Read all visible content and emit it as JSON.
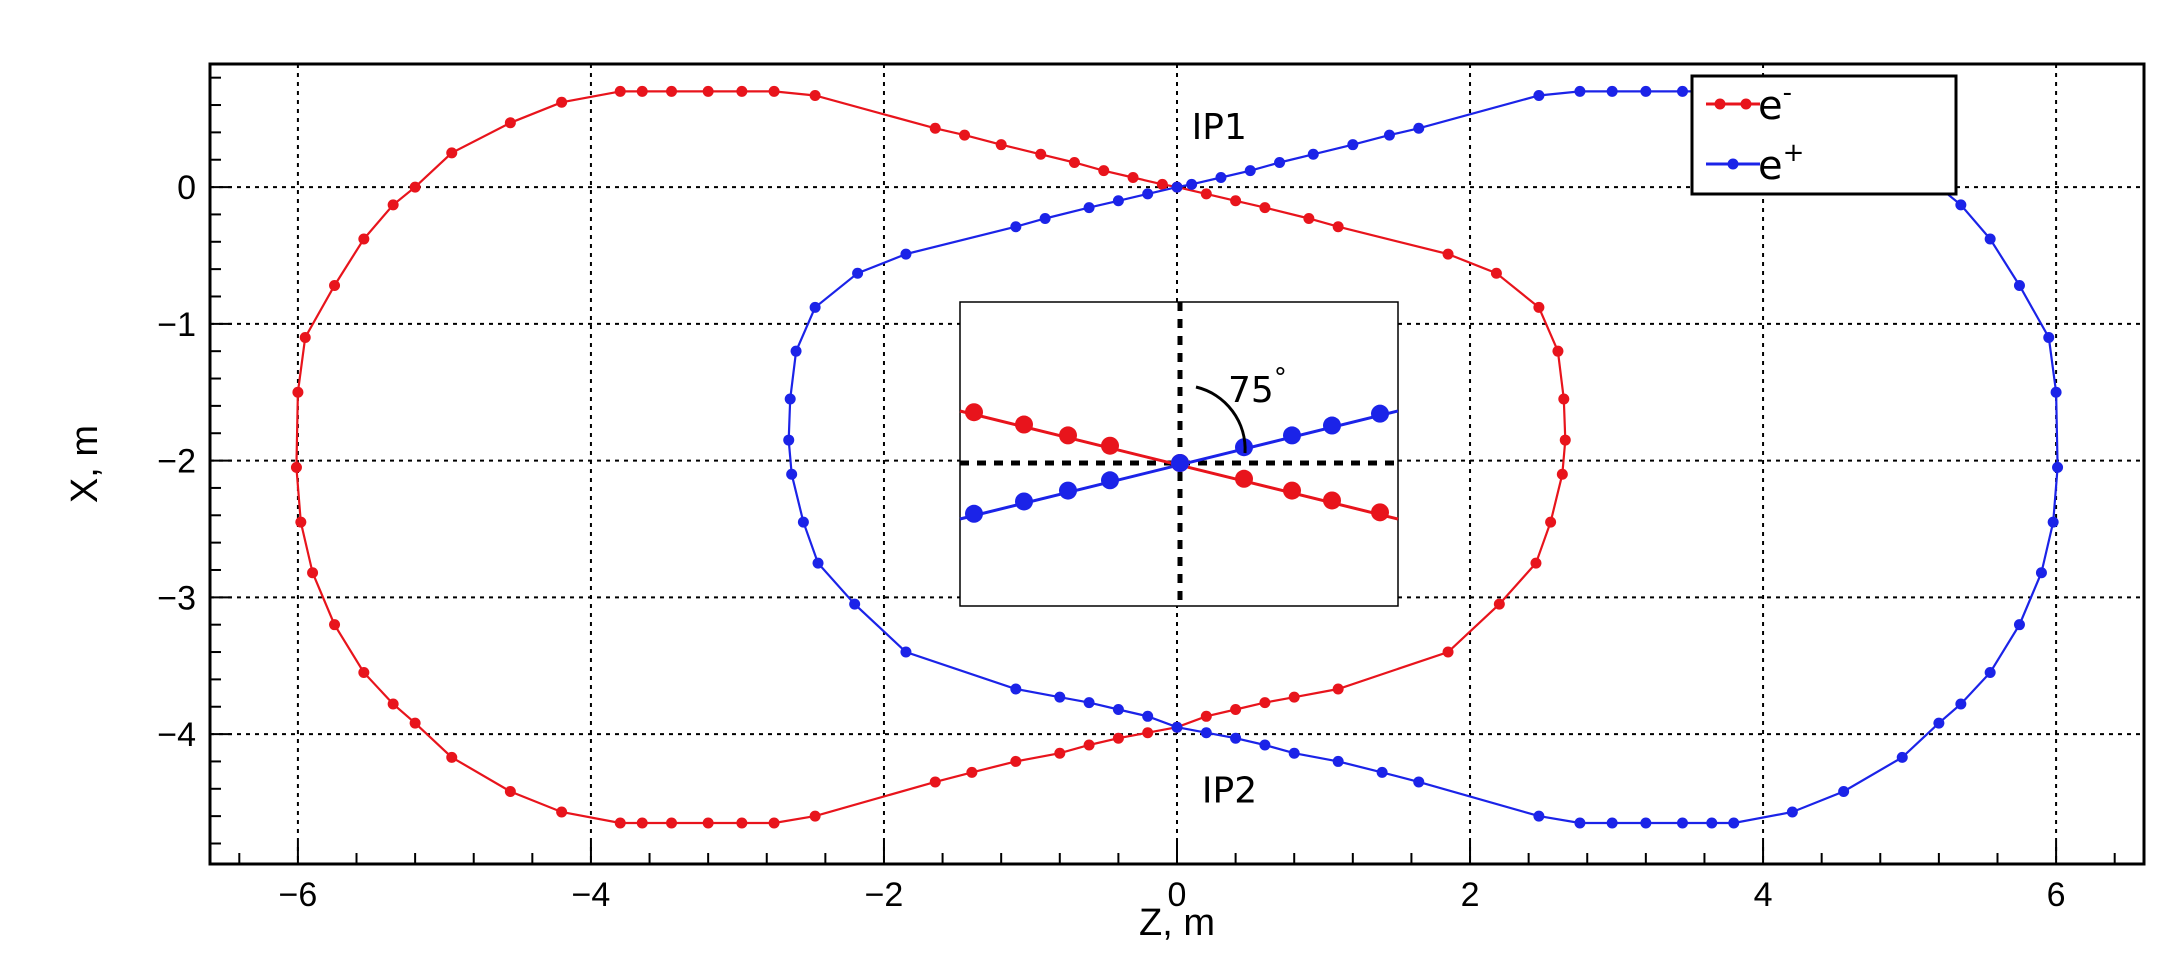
{
  "chart_data": {
    "type": "scatter",
    "xlabel": "Z, m",
    "ylabel": "X, m",
    "xlim": [
      -6.6,
      6.6
    ],
    "ylim": [
      -4.95,
      0.9
    ],
    "x_ticks": [
      -6,
      -4,
      -2,
      0,
      2,
      4,
      6
    ],
    "x_tick_labels": [
      "−6",
      "−4",
      "−2",
      "0",
      "2",
      "4",
      "6"
    ],
    "y_ticks": [
      0,
      -1,
      -2,
      -3,
      -4
    ],
    "y_tick_labels": [
      "0",
      "−1",
      "−2",
      "−3",
      "−4"
    ],
    "grid": true,
    "legend_position": "top-right",
    "annotations": [
      {
        "text": "IP1",
        "x": 0.1,
        "y": 0.35
      },
      {
        "text": "IP2",
        "x": 0.17,
        "y": -4.5
      }
    ],
    "series": [
      {
        "name": "e−",
        "legend_base": "e",
        "legend_sup": "-",
        "color": "#e8141c",
        "x": [
          -3.8,
          -3.65,
          -3.45,
          -3.2,
          -2.97,
          -2.75,
          -2.47,
          -1.65,
          -1.45,
          -1.2,
          -0.93,
          -0.7,
          -0.5,
          -0.3,
          -0.1,
          0.0,
          0.2,
          0.4,
          0.6,
          0.9,
          1.1,
          1.85,
          2.18,
          2.47,
          2.6,
          2.64,
          2.65,
          2.63,
          2.55,
          2.45,
          2.2,
          1.85,
          1.1,
          0.8,
          0.6,
          0.4,
          0.2,
          0.0,
          -0.2,
          -0.4,
          -0.6,
          -0.8,
          -1.1,
          -1.4,
          -1.65,
          -2.47,
          -2.75,
          -2.97,
          -3.2,
          -3.45,
          -3.65,
          -3.8,
          -4.2,
          -4.55,
          -4.95,
          -5.2,
          -5.35,
          -5.55,
          -5.75,
          -5.9,
          -5.98,
          -6.01,
          -6.0,
          -5.95,
          -5.75,
          -5.55,
          -5.35,
          -5.2,
          -4.95,
          -4.55,
          -4.2
        ],
        "y": [
          0.7,
          0.7,
          0.7,
          0.7,
          0.7,
          0.7,
          0.67,
          0.43,
          0.38,
          0.31,
          0.24,
          0.18,
          0.12,
          0.07,
          0.02,
          0.0,
          -0.05,
          -0.1,
          -0.15,
          -0.23,
          -0.29,
          -0.49,
          -0.63,
          -0.88,
          -1.2,
          -1.55,
          -1.85,
          -2.1,
          -2.45,
          -2.75,
          -3.05,
          -3.4,
          -3.67,
          -3.73,
          -3.77,
          -3.82,
          -3.87,
          -3.95,
          -3.99,
          -4.03,
          -4.08,
          -4.14,
          -4.2,
          -4.28,
          -4.35,
          -4.6,
          -4.65,
          -4.65,
          -4.65,
          -4.65,
          -4.65,
          -4.65,
          -4.57,
          -4.42,
          -4.17,
          -3.92,
          -3.78,
          -3.55,
          -3.2,
          -2.82,
          -2.45,
          -2.05,
          -1.5,
          -1.1,
          -0.72,
          -0.38,
          -0.13,
          0.0,
          0.25,
          0.47,
          0.62
        ]
      },
      {
        "name": "e+",
        "legend_base": "e",
        "legend_sup": "+",
        "color": "#1b23e8",
        "x": [
          3.8,
          3.65,
          3.45,
          3.2,
          2.97,
          2.75,
          2.47,
          1.65,
          1.45,
          1.2,
          0.93,
          0.7,
          0.5,
          0.3,
          0.1,
          0.0,
          -0.2,
          -0.4,
          -0.6,
          -0.9,
          -1.1,
          -1.85,
          -2.18,
          -2.47,
          -2.6,
          -2.64,
          -2.65,
          -2.63,
          -2.55,
          -2.45,
          -2.2,
          -1.85,
          -1.1,
          -0.8,
          -0.6,
          -0.4,
          -0.2,
          0.0,
          0.2,
          0.4,
          0.6,
          0.8,
          1.1,
          1.4,
          1.65,
          2.47,
          2.75,
          2.97,
          3.2,
          3.45,
          3.65,
          3.8,
          4.2,
          4.55,
          4.95,
          5.2,
          5.35,
          5.55,
          5.75,
          5.9,
          5.98,
          6.01,
          6.0,
          5.95,
          5.75,
          5.55,
          5.35,
          5.2,
          4.95,
          4.55,
          4.2
        ],
        "y": [
          0.7,
          0.7,
          0.7,
          0.7,
          0.7,
          0.7,
          0.67,
          0.43,
          0.38,
          0.31,
          0.24,
          0.18,
          0.12,
          0.07,
          0.02,
          0.0,
          -0.05,
          -0.1,
          -0.15,
          -0.23,
          -0.29,
          -0.49,
          -0.63,
          -0.88,
          -1.2,
          -1.55,
          -1.85,
          -2.1,
          -2.45,
          -2.75,
          -3.05,
          -3.4,
          -3.67,
          -3.73,
          -3.77,
          -3.82,
          -3.87,
          -3.95,
          -3.99,
          -4.03,
          -4.08,
          -4.14,
          -4.2,
          -4.28,
          -4.35,
          -4.6,
          -4.65,
          -4.65,
          -4.65,
          -4.65,
          -4.65,
          -4.65,
          -4.57,
          -4.42,
          -4.17,
          -3.92,
          -3.78,
          -3.55,
          -3.2,
          -2.82,
          -2.45,
          -2.05,
          -1.5,
          -1.1,
          -0.72,
          -0.38,
          -0.13,
          0.0,
          0.25,
          0.47,
          0.62
        ]
      }
    ],
    "inset": {
      "description": "zoom of crossing at IP",
      "angle_label": "75°",
      "angle_base": "75",
      "angle_sup": "°"
    }
  }
}
